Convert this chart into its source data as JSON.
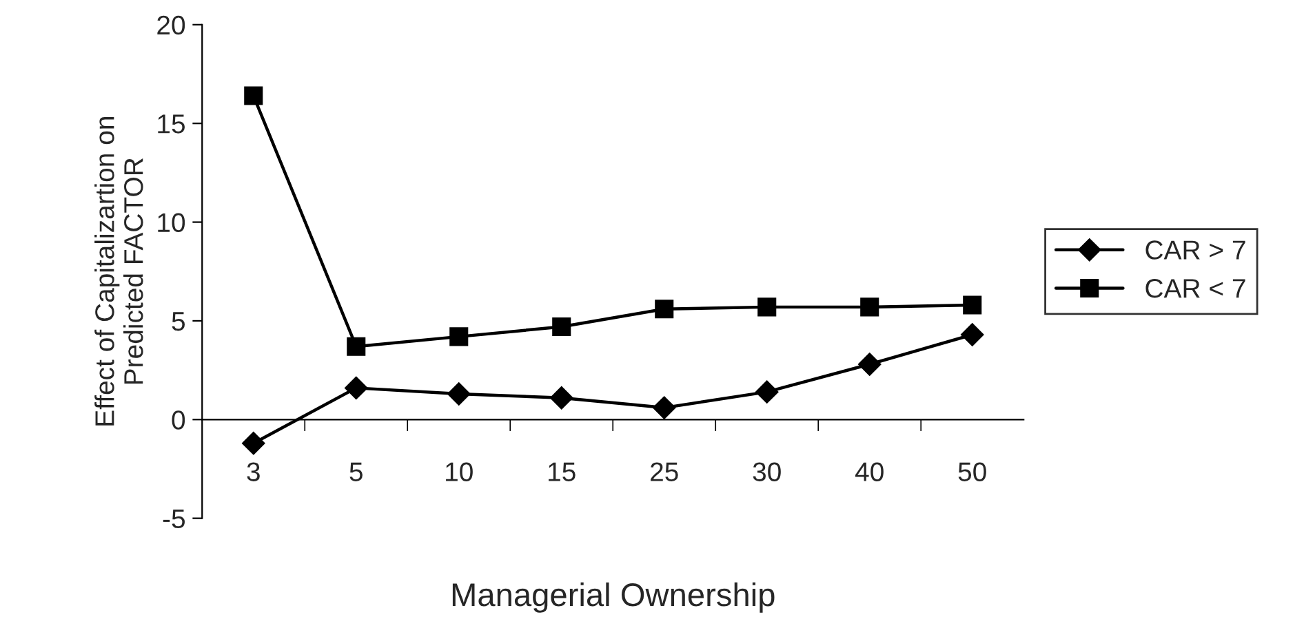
{
  "chart_data": {
    "type": "line",
    "xlabel": "Managerial Ownership",
    "ylabel": "Effect of Capitalizartion on\nPredicted FACTOR",
    "categories": [
      "3",
      "5",
      "10",
      "15",
      "25",
      "30",
      "40",
      "50"
    ],
    "series": [
      {
        "name": "CAR > 7",
        "color": "#000000",
        "marker": "diamond",
        "values": [
          -1.2,
          1.6,
          1.3,
          1.1,
          0.6,
          1.4,
          2.8,
          4.3
        ]
      },
      {
        "name": "CAR < 7",
        "color": "#000000",
        "marker": "square",
        "values": [
          16.4,
          3.7,
          4.2,
          4.7,
          5.6,
          5.7,
          5.7,
          5.8
        ]
      }
    ],
    "ylim": [
      -5,
      20
    ],
    "yticks": [
      -5,
      0,
      5,
      10,
      15,
      20
    ],
    "grid": false,
    "legend": "right",
    "line_style": "solid"
  }
}
